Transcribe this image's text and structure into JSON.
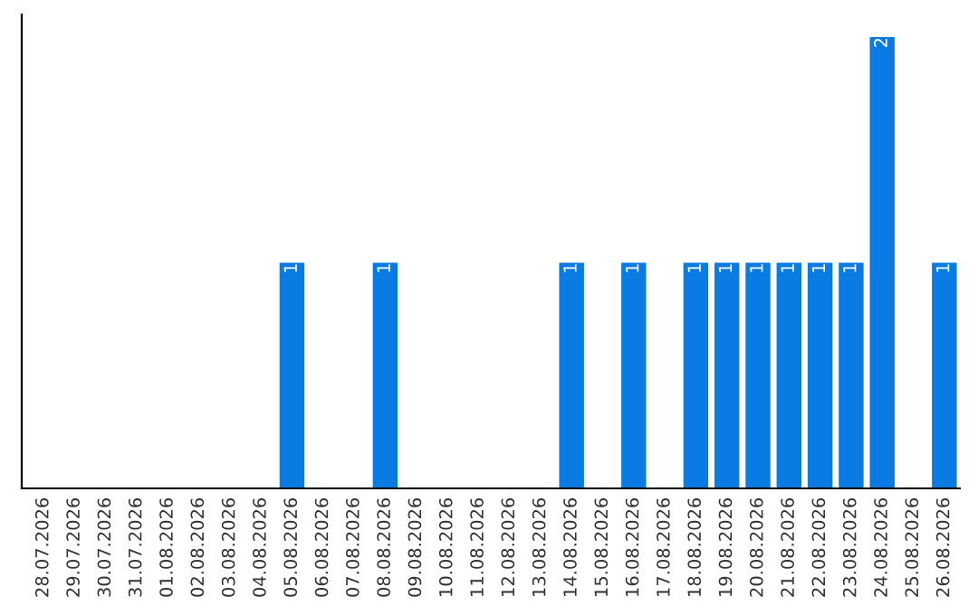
{
  "chart_data": {
    "type": "bar",
    "categories": [
      "28.07.2026",
      "29.07.2026",
      "30.07.2026",
      "31.07.2026",
      "01.08.2026",
      "02.08.2026",
      "03.08.2026",
      "04.08.2026",
      "05.08.2026",
      "06.08.2026",
      "07.08.2026",
      "08.08.2026",
      "09.08.2026",
      "10.08.2026",
      "11.08.2026",
      "12.08.2026",
      "13.08.2026",
      "14.08.2026",
      "15.08.2026",
      "16.08.2026",
      "17.08.2026",
      "18.08.2026",
      "19.08.2026",
      "20.08.2026",
      "21.08.2026",
      "22.08.2026",
      "23.08.2026",
      "24.08.2026",
      "25.08.2026",
      "26.08.2026"
    ],
    "values": [
      0,
      0,
      0,
      0,
      0,
      0,
      0,
      0,
      1,
      0,
      0,
      1,
      0,
      0,
      0,
      0,
      0,
      1,
      0,
      1,
      0,
      1,
      1,
      1,
      1,
      1,
      1,
      2,
      0,
      1
    ],
    "value_labels": [
      null,
      null,
      null,
      null,
      null,
      null,
      null,
      null,
      "1",
      null,
      null,
      "1",
      null,
      null,
      null,
      null,
      null,
      "1",
      null,
      "1",
      null,
      "1",
      "1",
      "1",
      "1",
      "1",
      "1",
      "2",
      null,
      "1"
    ],
    "color": "#0a7be2",
    "tick_labels": "x",
    "grid": false,
    "legend": false
  }
}
